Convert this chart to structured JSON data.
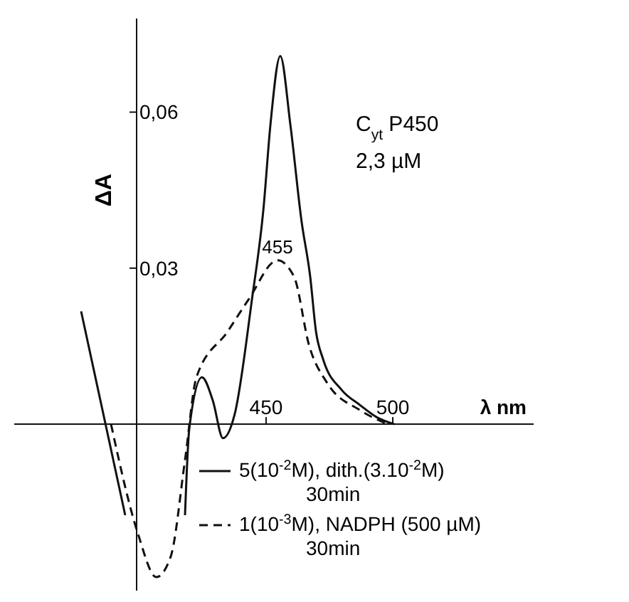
{
  "chart_data": {
    "type": "line",
    "xlabel": "λ nm",
    "ylabel": "ΔA",
    "xlim": [
      350.6,
      555.6
    ],
    "ylim": [
      -0.032,
      0.078
    ],
    "xticks": [
      450,
      500
    ],
    "yticks": [
      {
        "value": 0.03,
        "label": "0,03"
      },
      {
        "value": 0.06,
        "label": "0,06"
      }
    ],
    "annotations": [
      "C$_{yt}$ P450",
      "2,3 µM",
      {
        "text": "455",
        "x": 454.5,
        "y": 0.0315
      }
    ],
    "legend": "bottom right",
    "grid": false,
    "series": [
      {
        "name": "5(10$^{-2}$M), dith.(3.10$^{-2}$M)\n30min",
        "color": "#111111",
        "line_style": "solid",
        "x": [
          418,
          419.7,
          424.7,
          429,
          433,
          437.6,
          444.4,
          449,
          451.7,
          455.6,
          459.6,
          464,
          467.4,
          469.7,
          472.5,
          479.8,
          487,
          493.8,
          500.6
        ],
        "values": [
          -0.0175,
          -0.0008,
          0.009,
          0.0045,
          -0.0027,
          0.0019,
          0.0239,
          0.0416,
          0.0575,
          0.0708,
          0.0575,
          0.039,
          0.0284,
          0.0178,
          0.0125,
          0.0066,
          0.0037,
          0.0013,
          0
        ]
      },
      {
        "name": "1(10$^{-3}$M), NADPH (500 µM)\n30min",
        "color": "#111111",
        "line_style": "dashed",
        "x": [
          388.8,
          399.4,
          406.7,
          412.4,
          418,
          422.5,
          434.8,
          443,
          454.5,
          461,
          467,
          474,
          487,
          498
        ],
        "values": [
          0,
          -0.021,
          -0.0294,
          -0.0254,
          -0.0069,
          0.009,
          0.0178,
          0.0239,
          0.0315,
          0.0284,
          0.0151,
          0.008,
          0.0027,
          0
        ]
      },
      {
        "color": "#111111",
        "line_style": "solid",
        "x": [
          377,
          394.4
        ],
        "values": [
          0.0217,
          -0.0175
        ]
      }
    ]
  }
}
